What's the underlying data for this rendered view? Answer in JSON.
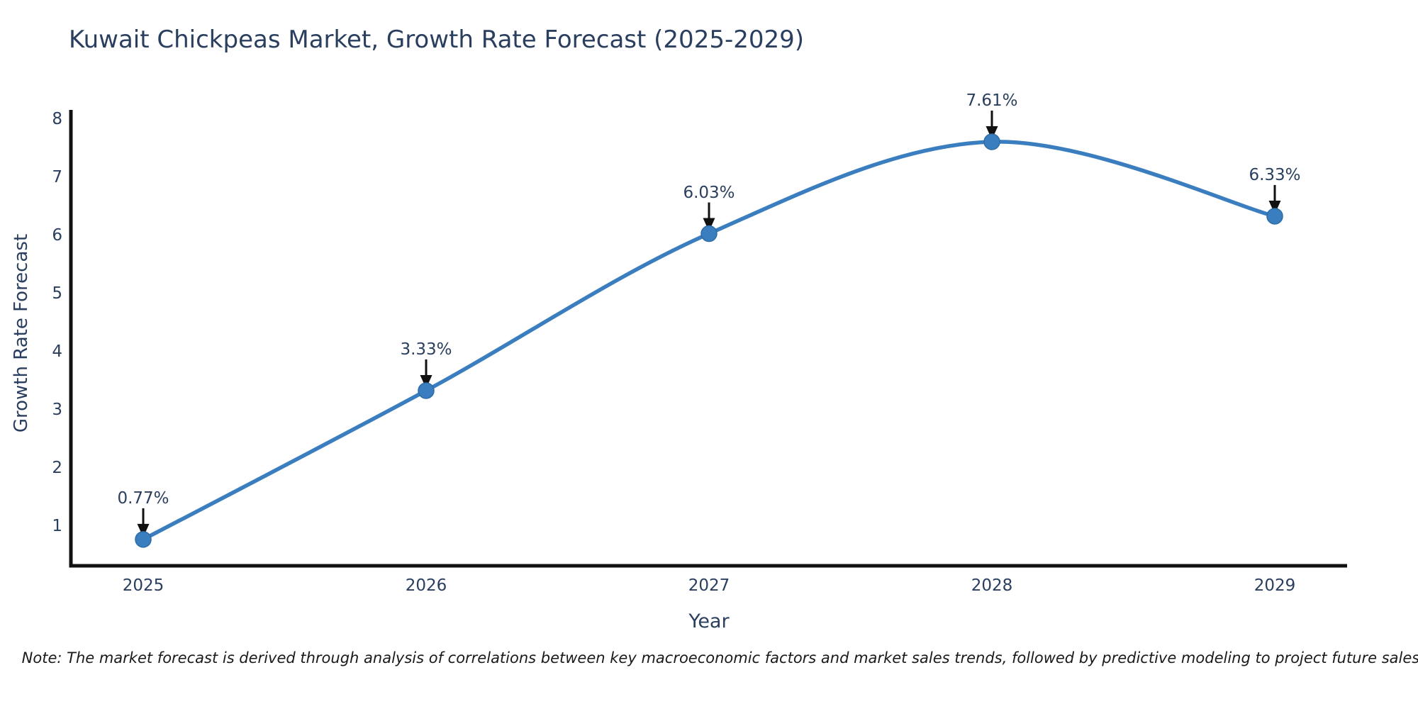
{
  "note": "Note: The market forecast is derived through analysis of correlations between key macroeconomic factors and market sales trends, followed by predictive modeling to project future sales.",
  "colors": {
    "line": "#3a7ebf",
    "marker_fill": "#3a7ebf",
    "marker_stroke": "#2e6da4",
    "axis": "#111111",
    "arrow": "#111111",
    "text": "#2a3f5f",
    "note_text": "#1a1a1a",
    "background": "#ffffff"
  },
  "chart_data": {
    "type": "line",
    "line_shape": "spline",
    "title": "Kuwait Chickpeas Market, Growth Rate Forecast (2025-2029)",
    "xlabel": "Year",
    "ylabel": "Growth Rate Forecast",
    "x": [
      2025,
      2026,
      2027,
      2028,
      2029
    ],
    "values": [
      0.77,
      3.33,
      6.03,
      7.61,
      6.33
    ],
    "point_labels": [
      "0.77%",
      "3.33%",
      "6.03%",
      "7.61%",
      "6.33%"
    ],
    "y_ticks": [
      1,
      2,
      3,
      4,
      5,
      6,
      7,
      8
    ],
    "ylim": [
      0.3,
      8.1
    ],
    "grid": false,
    "legend": "none",
    "markers": true,
    "annotations_arrows": true
  }
}
